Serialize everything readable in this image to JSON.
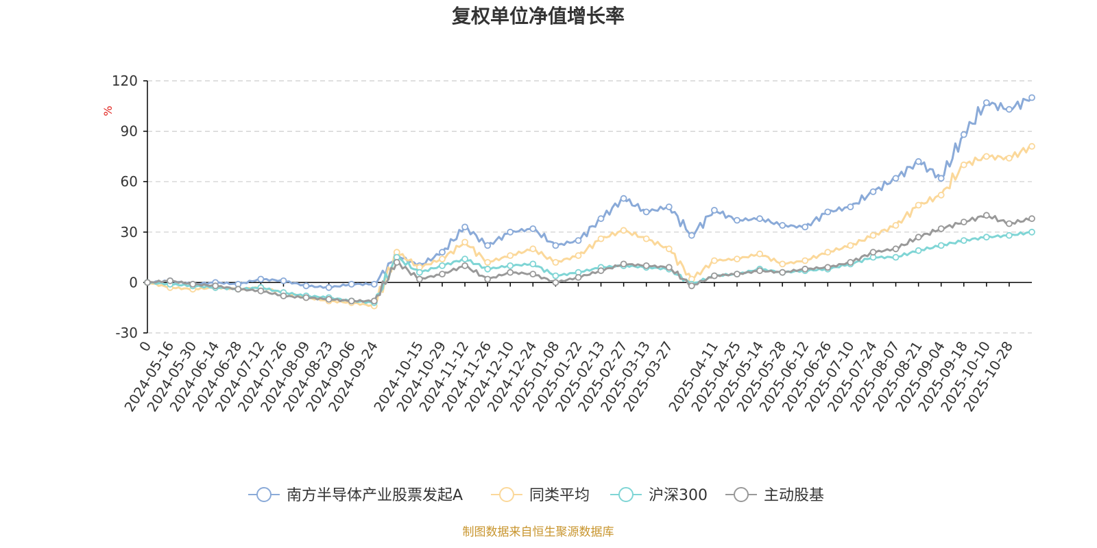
{
  "chart_data": {
    "type": "line",
    "title": "复权单位净值增长率",
    "ylabel": "%",
    "ylim": [
      -30,
      120
    ],
    "yticks": [
      -30,
      0,
      30,
      60,
      90,
      120
    ],
    "grid": true,
    "legend_position": "bottom",
    "source_note": "制图数据来自恒生聚源数据库",
    "x_tick_labels": [
      "0",
      "2024-05-16",
      "2024-05-30",
      "2024-06-14",
      "2024-06-28",
      "2024-07-12",
      "2024-07-26",
      "2024-08-09",
      "2024-08-23",
      "2024-09-06",
      "2024-09-24",
      "2024-10-15",
      "2024-10-29",
      "2024-11-12",
      "2024-11-26",
      "2024-12-10",
      "2024-12-24",
      "2025-01-08",
      "2025-01-22",
      "2025-02-13",
      "2025-02-27",
      "2025-03-13",
      "2025-03-27",
      "2025-04-11",
      "2025-04-25",
      "2025-05-14",
      "2025-05-28",
      "2025-06-12",
      "2025-06-26",
      "2025-07-10",
      "2025-07-24",
      "2025-08-07",
      "2025-08-21",
      "2025-09-04",
      "2025-09-18",
      "2025-10-10",
      "2025-10-28"
    ],
    "x": [
      "0",
      "2024-05-16",
      "2024-05-30",
      "2024-06-14",
      "2024-06-28",
      "2024-07-12",
      "2024-07-26",
      "2024-08-09",
      "2024-08-23",
      "2024-09-06",
      "2024-09-24",
      "2024-10-08",
      "2024-10-15",
      "2024-10-29",
      "2024-11-12",
      "2024-11-26",
      "2024-12-10",
      "2024-12-24",
      "2025-01-08",
      "2025-01-22",
      "2025-02-13",
      "2025-02-27",
      "2025-03-13",
      "2025-03-27",
      "2025-04-07",
      "2025-04-11",
      "2025-04-25",
      "2025-05-14",
      "2025-05-28",
      "2025-06-12",
      "2025-06-26",
      "2025-07-10",
      "2025-07-24",
      "2025-08-07",
      "2025-08-21",
      "2025-09-04",
      "2025-09-18",
      "2025-10-10",
      "2025-10-28",
      "2025-10-31"
    ],
    "series": [
      {
        "name": "南方半导体产业股票发起A",
        "color": "#8aaad8",
        "values": [
          0,
          1,
          -1,
          0,
          -1,
          2,
          1,
          -2,
          -3,
          -1,
          -1,
          16,
          10,
          18,
          33,
          22,
          30,
          32,
          22,
          25,
          38,
          50,
          42,
          45,
          28,
          43,
          37,
          38,
          34,
          33,
          42,
          45,
          54,
          62,
          72,
          62,
          88,
          107,
          103,
          110
        ]
      },
      {
        "name": "同类平均",
        "color": "#fbd89a",
        "values": [
          0,
          -3,
          -4,
          -3,
          -4,
          -3,
          -6,
          -9,
          -11,
          -12,
          -14,
          18,
          9,
          14,
          24,
          12,
          16,
          20,
          12,
          16,
          26,
          31,
          26,
          20,
          2,
          13,
          14,
          17,
          11,
          13,
          18,
          22,
          28,
          34,
          46,
          52,
          70,
          75,
          74,
          81
        ]
      },
      {
        "name": "沪深300",
        "color": "#7fd5d5",
        "values": [
          0,
          -1,
          -2,
          -3,
          -4,
          -3,
          -6,
          -8,
          -9,
          -11,
          -12,
          15,
          6,
          10,
          14,
          8,
          10,
          11,
          4,
          6,
          9,
          10,
          9,
          8,
          -1,
          4,
          5,
          8,
          6,
          7,
          8,
          11,
          15,
          15,
          19,
          22,
          25,
          27,
          28,
          30
        ]
      },
      {
        "name": "主动股基",
        "color": "#999999",
        "values": [
          0,
          1,
          -1,
          -2,
          -4,
          -5,
          -8,
          -9,
          -10,
          -11,
          -11,
          12,
          2,
          5,
          10,
          2,
          6,
          5,
          0,
          3,
          7,
          11,
          10,
          9,
          -2,
          4,
          5,
          7,
          6,
          8,
          9,
          12,
          18,
          20,
          27,
          32,
          36,
          40,
          35,
          38
        ]
      }
    ]
  }
}
